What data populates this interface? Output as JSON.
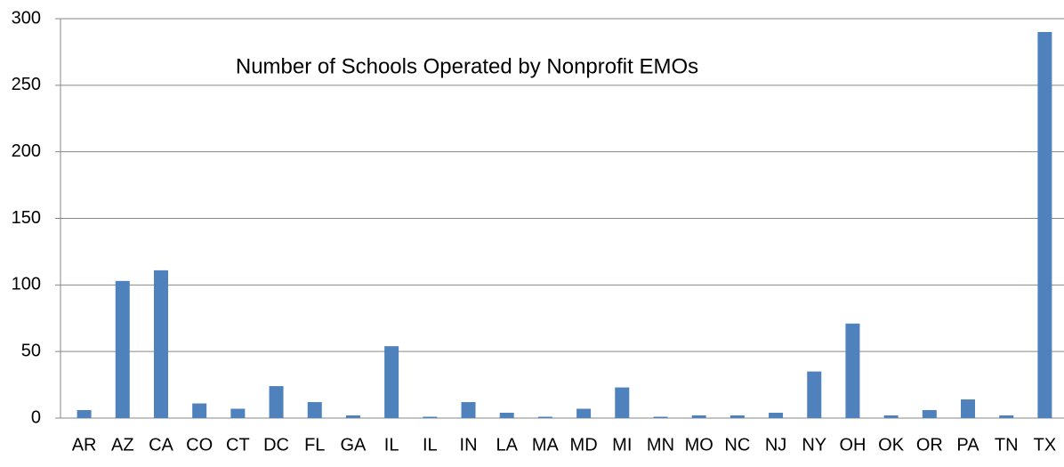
{
  "chart_data": {
    "type": "bar",
    "title": "Number of Schools Operated by Nonprofit EMOs",
    "categories": [
      "AR",
      "AZ",
      "CA",
      "CO",
      "CT",
      "DC",
      "FL",
      "GA",
      "IL",
      "IL",
      "IN",
      "LA",
      "MA",
      "MD",
      "MI",
      "MN",
      "MO",
      "NC",
      "NJ",
      "NY",
      "OH",
      "OK",
      "OR",
      "PA",
      "TN",
      "TX"
    ],
    "values": [
      6,
      103,
      111,
      11,
      7,
      24,
      12,
      2,
      54,
      1,
      12,
      4,
      1,
      7,
      23,
      1,
      2,
      2,
      4,
      35,
      71,
      2,
      6,
      14,
      2,
      290
    ],
    "color": "#4f81bd",
    "ylim": [
      0,
      300
    ],
    "yticks": [
      0,
      50,
      100,
      150,
      200,
      250,
      300
    ],
    "grid": true
  }
}
